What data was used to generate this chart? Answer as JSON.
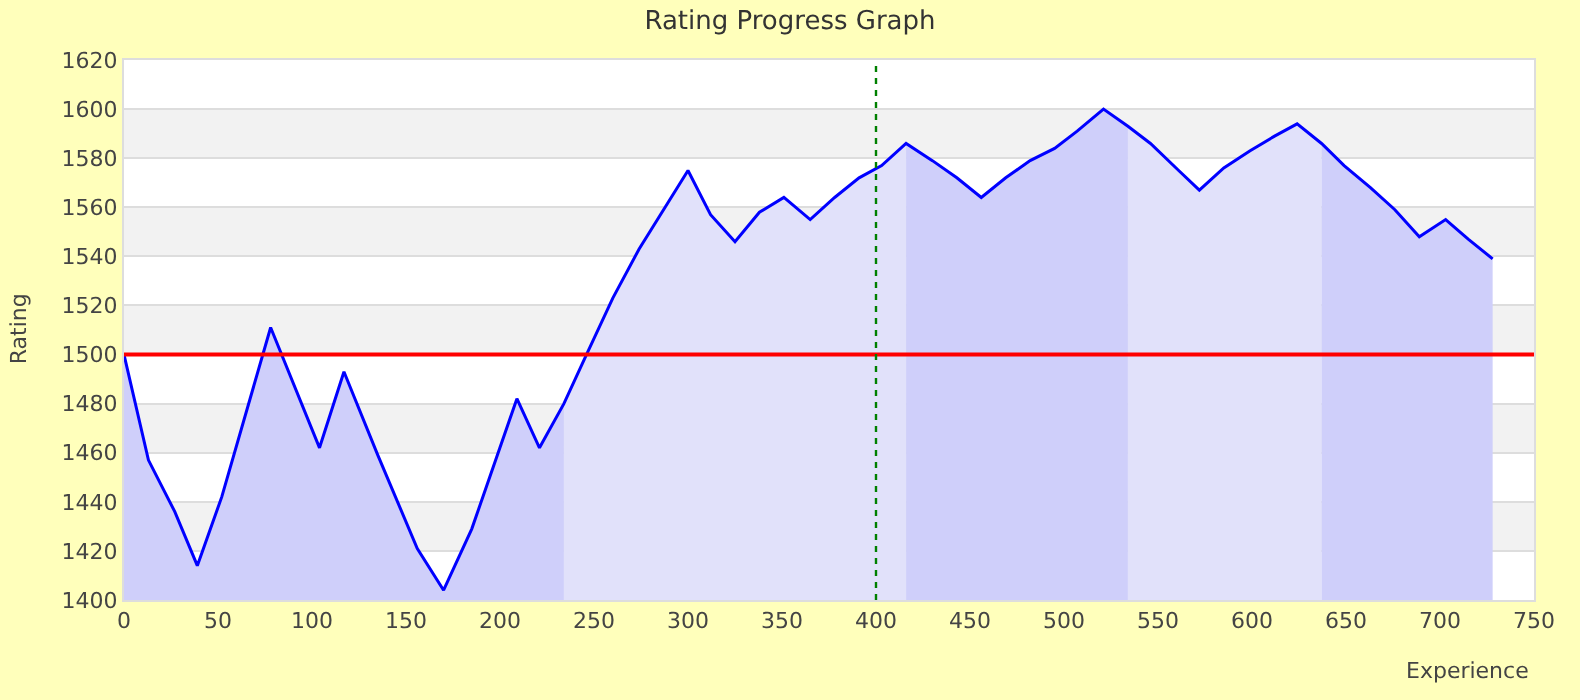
{
  "chart_data": {
    "type": "line",
    "title": "Rating Progress Graph",
    "xlabel": "Experience",
    "ylabel": "Rating",
    "xlim": [
      0,
      750
    ],
    "xticks": [
      0,
      50,
      100,
      150,
      200,
      250,
      300,
      350,
      400,
      450,
      500,
      550,
      600,
      650,
      700,
      750
    ],
    "ylim": [
      1400,
      1620
    ],
    "yticks": [
      1400,
      1420,
      1440,
      1460,
      1480,
      1500,
      1520,
      1540,
      1560,
      1580,
      1600,
      1620
    ],
    "grid": "y",
    "marker": "none",
    "line_style": "solid",
    "ref_lines": [
      {
        "axis": "y",
        "value": 1500,
        "color": "#ff0000",
        "line_style": "solid"
      },
      {
        "axis": "x",
        "value": 400,
        "color": "#008000",
        "line_style": "dotted"
      }
    ],
    "series": [
      {
        "type": "area",
        "color": "#cfcffa",
        "x": [
          0,
          13,
          27,
          39,
          52,
          78,
          104,
          117,
          135,
          156,
          170,
          185,
          209,
          221,
          234
        ],
        "values": [
          1500,
          1457,
          1436,
          1414,
          1442,
          1511,
          1462,
          1493,
          1459,
          1421,
          1404,
          1429,
          1482,
          1462,
          1480
        ]
      },
      {
        "type": "area",
        "color": "#e1e1fa",
        "x": [
          234,
          246,
          260,
          274,
          300,
          312,
          325,
          338,
          351,
          365,
          378,
          391,
          403,
          416
        ],
        "values": [
          1480,
          1500,
          1523,
          1543,
          1575,
          1557,
          1546,
          1558,
          1564,
          1555,
          1564,
          1572,
          1577,
          1586
        ]
      },
      {
        "type": "area",
        "color": "#cfcffa",
        "x": [
          416,
          430,
          443,
          456,
          469,
          482,
          495,
          507,
          521,
          534
        ],
        "values": [
          1586,
          1579,
          1572,
          1564,
          1572,
          1579,
          1584,
          1591,
          1600,
          1593
        ]
      },
      {
        "type": "area",
        "color": "#e1e1fa",
        "x": [
          534,
          546,
          561,
          572,
          585,
          599,
          612,
          624,
          637
        ],
        "values": [
          1593,
          1586,
          1575,
          1567,
          1576,
          1583,
          1589,
          1594,
          1586
        ]
      },
      {
        "type": "area",
        "color": "#cfcffa",
        "x": [
          637,
          649,
          663,
          676,
          689,
          703,
          715,
          728
        ],
        "values": [
          1586,
          1577,
          1568,
          1559,
          1548,
          1555,
          1547,
          1539
        ]
      },
      {
        "color": "#0000ff",
        "x": [
          0,
          13,
          27,
          39,
          52,
          78,
          104,
          117,
          135,
          156,
          170,
          185,
          209,
          221,
          234,
          246,
          260,
          274,
          300,
          312,
          325,
          338,
          351,
          365,
          378,
          391,
          403,
          416,
          430,
          443,
          456,
          469,
          482,
          495,
          507,
          521,
          534,
          546,
          561,
          572,
          585,
          599,
          612,
          624,
          637,
          649,
          663,
          676,
          689,
          703,
          715,
          728
        ],
        "values": [
          1500,
          1457,
          1436,
          1414,
          1442,
          1511,
          1462,
          1493,
          1459,
          1421,
          1404,
          1429,
          1482,
          1462,
          1480,
          1500,
          1523,
          1543,
          1575,
          1557,
          1546,
          1558,
          1564,
          1555,
          1564,
          1572,
          1577,
          1586,
          1579,
          1572,
          1564,
          1572,
          1579,
          1584,
          1591,
          1600,
          1593,
          1586,
          1575,
          1567,
          1576,
          1583,
          1589,
          1594,
          1586,
          1577,
          1568,
          1559,
          1548,
          1555,
          1547,
          1539
        ]
      }
    ]
  }
}
